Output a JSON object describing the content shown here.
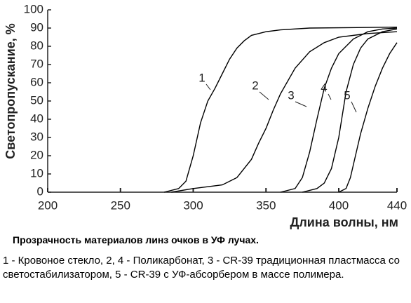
{
  "chart_data": {
    "type": "line",
    "xlabel": "Длина волны, нм",
    "ylabel": "Светопропускание, %",
    "xlim": [
      200,
      440
    ],
    "xticks": [
      200,
      250,
      300,
      350,
      400,
      440
    ],
    "ylim": [
      0,
      100
    ],
    "yticks": [
      0,
      10,
      20,
      30,
      40,
      50,
      60,
      70,
      80,
      90,
      100
    ],
    "series": [
      {
        "name": "1",
        "color": "#000000",
        "x": [
          280,
          290,
          295,
          300,
          305,
          310,
          315,
          320,
          325,
          330,
          335,
          340,
          350,
          360,
          380,
          440
        ],
        "values": [
          0,
          2,
          6,
          20,
          38,
          50,
          57,
          65,
          73,
          79,
          83,
          86,
          88,
          89,
          90,
          90.5
        ]
      },
      {
        "name": "2",
        "color": "#000000",
        "x": [
          285,
          300,
          320,
          330,
          340,
          345,
          350,
          355,
          360,
          370,
          380,
          390,
          400,
          420,
          440
        ],
        "values": [
          0,
          2,
          4,
          8,
          18,
          27,
          35,
          45,
          54,
          68,
          77,
          82,
          85,
          87,
          88
        ]
      },
      {
        "name": "3",
        "color": "#000000",
        "x": [
          360,
          370,
          375,
          380,
          385,
          390,
          395,
          400,
          410,
          420,
          430,
          440
        ],
        "values": [
          0,
          2,
          8,
          22,
          40,
          57,
          68,
          76,
          84,
          88,
          89.5,
          90
        ]
      },
      {
        "name": "4",
        "color": "#000000",
        "x": [
          375,
          385,
          390,
          395,
          400,
          405,
          410,
          415,
          420,
          430,
          440
        ],
        "values": [
          0,
          2,
          5,
          13,
          30,
          55,
          70,
          79,
          84,
          88,
          89.5
        ]
      },
      {
        "name": "5",
        "color": "#000000",
        "x": [
          400,
          405,
          408,
          410,
          415,
          420,
          425,
          430,
          435,
          440
        ],
        "values": [
          0,
          2,
          8,
          15,
          32,
          46,
          58,
          68,
          76,
          82
        ]
      }
    ],
    "caption_title": "Прозрачность материалов линз очков в УФ лучах.",
    "caption_text": "1 - Кровоное стекло, 2, 4 - Поликарбонат, 3 - CR-39 традиционная пластмасса со светостабилизатором, 5 - CR-39 с УФ-абсорбером в массе полимера."
  }
}
